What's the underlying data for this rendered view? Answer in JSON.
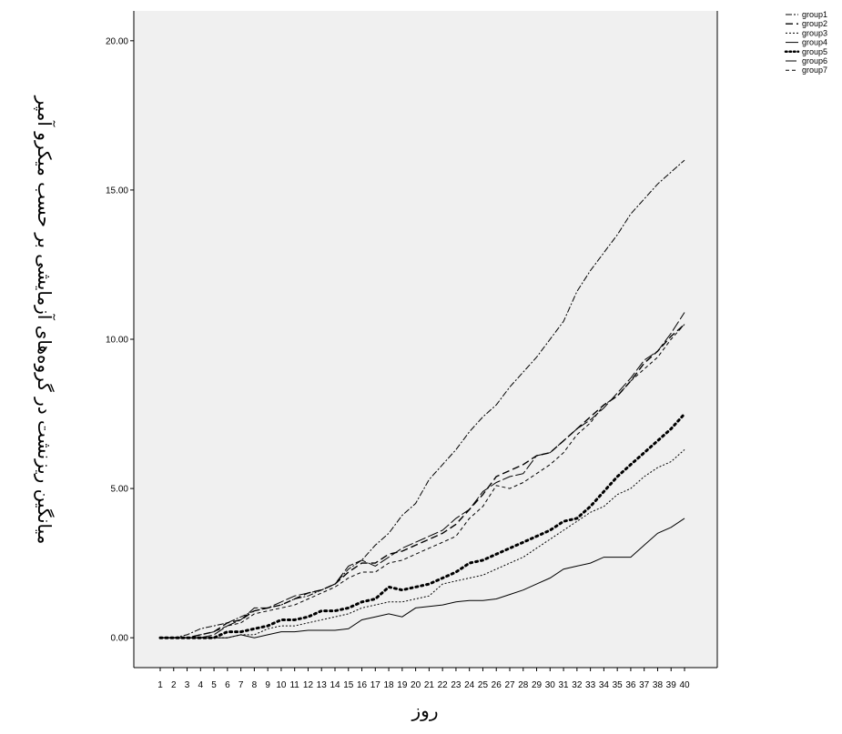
{
  "chart_data": {
    "type": "line",
    "title": "",
    "xlabel": "روز",
    "ylabel": "میانگین ریزنشت در گروه‌های آزمایشی بر حسب میکرو آمپر",
    "x": [
      1,
      2,
      3,
      4,
      5,
      6,
      7,
      8,
      9,
      10,
      11,
      12,
      13,
      14,
      15,
      16,
      17,
      18,
      19,
      20,
      21,
      22,
      23,
      24,
      25,
      26,
      27,
      28,
      29,
      30,
      31,
      32,
      33,
      34,
      35,
      36,
      37,
      38,
      39,
      40
    ],
    "ylim": [
      -1,
      21
    ],
    "yticks": [
      "0.00",
      "5.00",
      "10.00",
      "15.00",
      "20.00"
    ],
    "grid": false,
    "legend_position": "top-right",
    "background": "#f0f0f0",
    "series": [
      {
        "name": "group1",
        "dash": "7,2,2,2",
        "width": 1,
        "values": [
          0,
          0,
          0.1,
          0.3,
          0.4,
          0.5,
          0.7,
          0.9,
          1.0,
          1.1,
          1.3,
          1.4,
          1.6,
          1.8,
          2.3,
          2.6,
          3.1,
          3.5,
          4.1,
          4.5,
          5.3,
          5.8,
          6.3,
          6.9,
          7.4,
          7.8,
          8.4,
          8.9,
          9.4,
          10.0,
          10.6,
          11.6,
          12.3,
          12.9,
          13.5,
          14.2,
          14.7,
          15.2,
          15.6,
          16.0
        ]
      },
      {
        "name": "group2",
        "dash": "8,4",
        "width": 1.4,
        "values": [
          0,
          0,
          0,
          0.1,
          0.2,
          0.5,
          0.6,
          0.9,
          1.0,
          1.1,
          1.3,
          1.5,
          1.6,
          1.8,
          2.2,
          2.5,
          2.5,
          2.8,
          2.9,
          3.1,
          3.3,
          3.5,
          3.8,
          4.3,
          4.8,
          5.4,
          5.6,
          5.8,
          6.1,
          6.2,
          6.6,
          7.0,
          7.4,
          7.8,
          8.1,
          8.6,
          9.2,
          9.6,
          10.1,
          10.5
        ]
      },
      {
        "name": "group3",
        "dash": "2,2",
        "width": 1,
        "values": [
          0,
          0,
          0,
          0,
          0,
          0,
          0.1,
          0.1,
          0.3,
          0.4,
          0.4,
          0.5,
          0.6,
          0.7,
          0.8,
          1.0,
          1.1,
          1.2,
          1.2,
          1.3,
          1.4,
          1.8,
          1.9,
          2.0,
          2.1,
          2.3,
          2.5,
          2.7,
          3.0,
          3.3,
          3.6,
          3.9,
          4.2,
          4.4,
          4.8,
          5.0,
          5.4,
          5.7,
          5.9,
          6.3
        ]
      },
      {
        "name": "group4",
        "dash": "",
        "width": 1,
        "values": [
          0,
          0,
          0,
          0,
          0,
          0,
          0.1,
          0,
          0.1,
          0.2,
          0.2,
          0.25,
          0.25,
          0.25,
          0.3,
          0.6,
          0.7,
          0.8,
          0.7,
          1.0,
          1.05,
          1.1,
          1.2,
          1.25,
          1.25,
          1.3,
          1.45,
          1.6,
          1.8,
          2.0,
          2.3,
          2.4,
          2.5,
          2.7,
          2.7,
          2.7,
          3.1,
          3.5,
          3.7,
          4.0
        ]
      },
      {
        "name": "group5",
        "dash": "2,4",
        "width": 3,
        "values": [
          0,
          0,
          0,
          0,
          0,
          0.2,
          0.2,
          0.3,
          0.4,
          0.6,
          0.6,
          0.7,
          0.9,
          0.9,
          1.0,
          1.2,
          1.3,
          1.7,
          1.6,
          1.7,
          1.8,
          2.0,
          2.2,
          2.5,
          2.6,
          2.8,
          3.0,
          3.2,
          3.4,
          3.6,
          3.9,
          4.0,
          4.4,
          4.9,
          5.4,
          5.8,
          6.2,
          6.6,
          7.0,
          7.5
        ]
      },
      {
        "name": "group6",
        "dash": "12,3",
        "width": 1,
        "values": [
          0,
          0,
          0,
          0,
          0.1,
          0.4,
          0.6,
          1.0,
          1.0,
          1.2,
          1.4,
          1.5,
          1.6,
          1.8,
          2.4,
          2.6,
          2.4,
          2.7,
          3.0,
          3.2,
          3.4,
          3.6,
          4.0,
          4.3,
          4.9,
          5.2,
          5.4,
          5.5,
          6.1,
          6.2,
          6.6,
          7.0,
          7.3,
          7.7,
          8.2,
          8.7,
          9.3,
          9.6,
          10.2,
          10.9
        ]
      },
      {
        "name": "group7",
        "dash": "4,3",
        "width": 1,
        "values": [
          0,
          0,
          0,
          0.1,
          0.2,
          0.4,
          0.5,
          0.8,
          0.9,
          1.0,
          1.1,
          1.3,
          1.5,
          1.7,
          2.0,
          2.2,
          2.2,
          2.5,
          2.6,
          2.8,
          3.0,
          3.2,
          3.4,
          4.0,
          4.4,
          5.1,
          5.0,
          5.2,
          5.5,
          5.8,
          6.2,
          6.8,
          7.2,
          7.8,
          8.1,
          8.6,
          9.0,
          9.4,
          10.0,
          10.5
        ]
      }
    ]
  }
}
